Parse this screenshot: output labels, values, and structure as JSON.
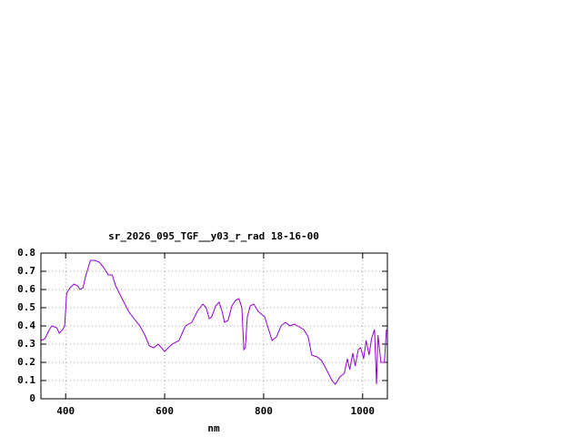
{
  "chart_data": {
    "type": "line",
    "title": "sr_2026_095_TGF__y03_r_rad 18-16-00",
    "x_label": "nm",
    "x": [
      350,
      358,
      367,
      372,
      382,
      387,
      394,
      398,
      402,
      409,
      417,
      424,
      429,
      435,
      440,
      450,
      459,
      468,
      477,
      486,
      494,
      501,
      514,
      527,
      538,
      550,
      560,
      569,
      578,
      587,
      600,
      615,
      629,
      642,
      655,
      666,
      677,
      684,
      690,
      695,
      703,
      710,
      716,
      721,
      728,
      736,
      743,
      750,
      756,
      760,
      763,
      767,
      773,
      780,
      789,
      802,
      809,
      817,
      826,
      835,
      844,
      853,
      862,
      881,
      890,
      897,
      908,
      917,
      927,
      938,
      945,
      954,
      963,
      969,
      974,
      980,
      985,
      991,
      996,
      1002,
      1007,
      1013,
      1018,
      1024,
      1028,
      1031,
      1037,
      1044,
      1048
    ],
    "series": [
      {
        "name": "sr_2026_095_TGF__y03_r_rad",
        "color": "#9400d3",
        "values": [
          0.32,
          0.33,
          0.38,
          0.4,
          0.39,
          0.36,
          0.38,
          0.4,
          0.58,
          0.61,
          0.63,
          0.62,
          0.6,
          0.61,
          0.67,
          0.76,
          0.76,
          0.75,
          0.72,
          0.68,
          0.68,
          0.62,
          0.55,
          0.48,
          0.44,
          0.4,
          0.35,
          0.29,
          0.28,
          0.3,
          0.26,
          0.3,
          0.32,
          0.4,
          0.42,
          0.48,
          0.52,
          0.5,
          0.44,
          0.45,
          0.51,
          0.53,
          0.48,
          0.42,
          0.43,
          0.51,
          0.54,
          0.55,
          0.5,
          0.27,
          0.28,
          0.45,
          0.51,
          0.52,
          0.48,
          0.45,
          0.39,
          0.32,
          0.34,
          0.4,
          0.42,
          0.4,
          0.41,
          0.38,
          0.34,
          0.24,
          0.23,
          0.21,
          0.16,
          0.1,
          0.08,
          0.12,
          0.14,
          0.22,
          0.16,
          0.25,
          0.18,
          0.27,
          0.28,
          0.22,
          0.32,
          0.24,
          0.33,
          0.38,
          0.08,
          0.35,
          0.2,
          0.2,
          0.38
        ]
      }
    ],
    "xlim": [
      350,
      1050
    ],
    "xticks": [
      400,
      600,
      800,
      1000
    ],
    "ylim": [
      0,
      0.8
    ],
    "yticks": [
      0,
      0.1,
      0.2,
      0.3,
      0.4,
      0.5,
      0.6,
      0.7,
      0.8
    ],
    "grid": true
  }
}
